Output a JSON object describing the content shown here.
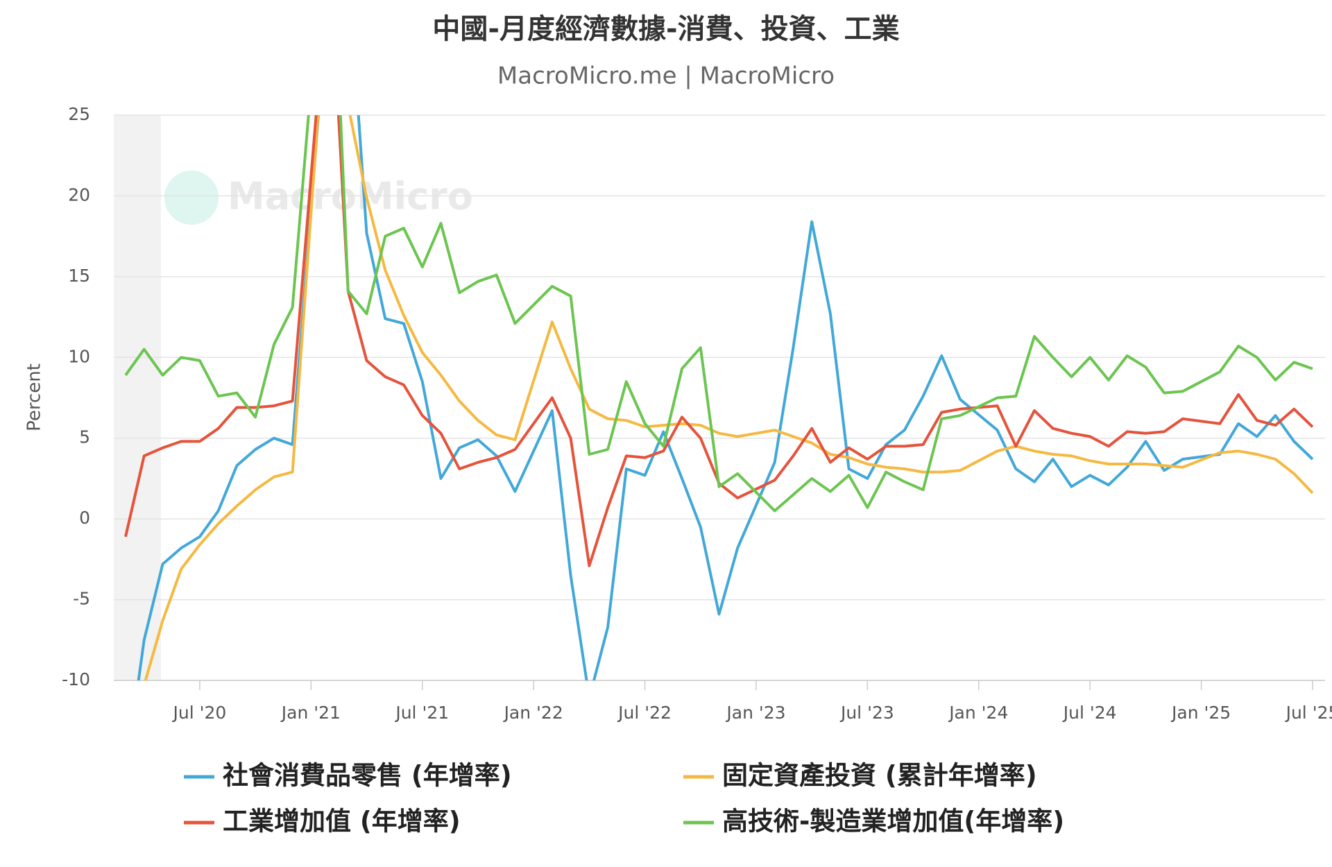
{
  "chart_data": {
    "type": "line",
    "title": "中國-月度經濟數據-消費、投資、工業",
    "subtitle": "MacroMicro.me | MacroMicro",
    "watermark": "MacroMicro",
    "y_label": "Percent",
    "x": [
      "2020-03",
      "2020-04",
      "2020-05",
      "2020-06",
      "2020-07",
      "2020-08",
      "2020-09",
      "2020-10",
      "2020-11",
      "2020-12",
      "2021-02",
      "2021-03",
      "2021-04",
      "2021-05",
      "2021-06",
      "2021-07",
      "2021-08",
      "2021-09",
      "2021-10",
      "2021-11",
      "2021-12",
      "2022-02",
      "2022-03",
      "2022-04",
      "2022-05",
      "2022-06",
      "2022-07",
      "2022-08",
      "2022-09",
      "2022-10",
      "2022-11",
      "2022-12",
      "2023-02",
      "2023-03",
      "2023-04",
      "2023-05",
      "2023-06",
      "2023-07",
      "2023-08",
      "2023-09",
      "2023-10",
      "2023-11",
      "2023-12",
      "2024-02",
      "2024-03",
      "2024-04",
      "2024-05",
      "2024-06",
      "2024-07",
      "2024-08",
      "2024-09",
      "2024-10",
      "2024-11",
      "2024-12",
      "2025-02",
      "2025-03",
      "2025-04",
      "2025-05",
      "2025-06",
      "2025-07"
    ],
    "series": [
      {
        "name": "社會消費品零售 (年增率)",
        "color": "#42a8d8",
        "values": [
          -15.8,
          -7.5,
          -2.8,
          -1.8,
          -1.1,
          0.5,
          3.3,
          4.3,
          5.0,
          4.6,
          33.8,
          34.2,
          17.7,
          12.4,
          12.1,
          8.5,
          2.5,
          4.4,
          4.9,
          3.9,
          1.7,
          6.7,
          -3.5,
          -11.1,
          -6.7,
          3.1,
          2.7,
          5.4,
          2.5,
          -0.5,
          -5.9,
          -1.8,
          3.5,
          10.6,
          18.4,
          12.7,
          3.1,
          2.5,
          4.6,
          5.5,
          7.6,
          10.1,
          7.4,
          5.5,
          3.1,
          2.3,
          3.7,
          2.0,
          2.7,
          2.1,
          3.2,
          4.8,
          3.0,
          3.7,
          4.0,
          5.9,
          5.1,
          6.4,
          4.8,
          3.7
        ]
      },
      {
        "name": "固定資產投資 (累計年增率)",
        "color": "#f5b942",
        "values": [
          -16.1,
          -10.3,
          -6.3,
          -3.1,
          -1.6,
          -0.3,
          0.8,
          1.8,
          2.6,
          2.9,
          35.0,
          25.6,
          19.9,
          15.4,
          12.6,
          10.3,
          8.9,
          7.3,
          6.1,
          5.2,
          4.9,
          12.2,
          9.3,
          6.8,
          6.2,
          6.1,
          5.7,
          5.8,
          5.9,
          5.8,
          5.3,
          5.1,
          5.5,
          5.1,
          4.7,
          4.0,
          3.8,
          3.4,
          3.2,
          3.1,
          2.9,
          2.9,
          3.0,
          4.2,
          4.5,
          4.2,
          4.0,
          3.9,
          3.6,
          3.4,
          3.4,
          3.4,
          3.3,
          3.2,
          4.1,
          4.2,
          4.0,
          3.7,
          2.8,
          1.6
        ]
      },
      {
        "name": "工業增加值 (年增率)",
        "color": "#e5533b",
        "values": [
          -1.1,
          3.9,
          4.4,
          4.8,
          4.8,
          5.6,
          6.9,
          6.9,
          7.0,
          7.3,
          35.1,
          14.1,
          9.8,
          8.8,
          8.3,
          6.4,
          5.3,
          3.1,
          3.5,
          3.8,
          4.3,
          7.5,
          5.0,
          -2.9,
          0.7,
          3.9,
          3.8,
          4.2,
          6.3,
          5.0,
          2.2,
          1.3,
          2.4,
          3.9,
          5.6,
          3.5,
          4.4,
          3.7,
          4.5,
          4.5,
          4.6,
          6.6,
          6.8,
          7.0,
          4.5,
          6.7,
          5.6,
          5.3,
          5.1,
          4.5,
          5.4,
          5.3,
          5.4,
          6.2,
          5.9,
          7.7,
          6.1,
          5.8,
          6.8,
          5.7
        ]
      },
      {
        "name": "高技術-製造業增加值(年增率)",
        "color": "#6cc551",
        "values": [
          8.9,
          10.5,
          8.9,
          10.0,
          9.8,
          7.6,
          7.8,
          6.3,
          10.8,
          13.1,
          40.6,
          14.1,
          12.7,
          17.5,
          18.0,
          15.6,
          18.3,
          14.0,
          14.7,
          15.1,
          12.1,
          14.4,
          13.8,
          4.0,
          4.3,
          8.5,
          5.9,
          4.5,
          9.3,
          10.6,
          2.0,
          2.8,
          0.5,
          1.5,
          2.5,
          1.7,
          2.7,
          0.7,
          2.9,
          2.3,
          1.8,
          6.2,
          6.4,
          7.5,
          7.6,
          11.3,
          10.0,
          8.8,
          10.0,
          8.6,
          10.1,
          9.4,
          7.8,
          7.9,
          9.1,
          10.7,
          10.0,
          8.6,
          9.7,
          9.3
        ]
      }
    ],
    "xlim": [
      "2020-03",
      "2025-07"
    ],
    "xticks": [
      {
        "value": "2020-07",
        "label": "Jul '20"
      },
      {
        "value": "2021-01",
        "label": "Jan '21"
      },
      {
        "value": "2021-07",
        "label": "Jul '21"
      },
      {
        "value": "2022-01",
        "label": "Jan '22"
      },
      {
        "value": "2022-07",
        "label": "Jul '22"
      },
      {
        "value": "2023-01",
        "label": "Jan '23"
      },
      {
        "value": "2023-07",
        "label": "Jul '23"
      },
      {
        "value": "2024-01",
        "label": "Jan '24"
      },
      {
        "value": "2024-07",
        "label": "Jul '24"
      },
      {
        "value": "2025-01",
        "label": "Jan '25"
      },
      {
        "value": "2025-07",
        "label": "Jul '25"
      }
    ],
    "ylim": [
      -10,
      25
    ],
    "yticks": [
      -10,
      -5,
      0,
      5,
      10,
      15,
      20,
      25
    ],
    "grid": true
  }
}
